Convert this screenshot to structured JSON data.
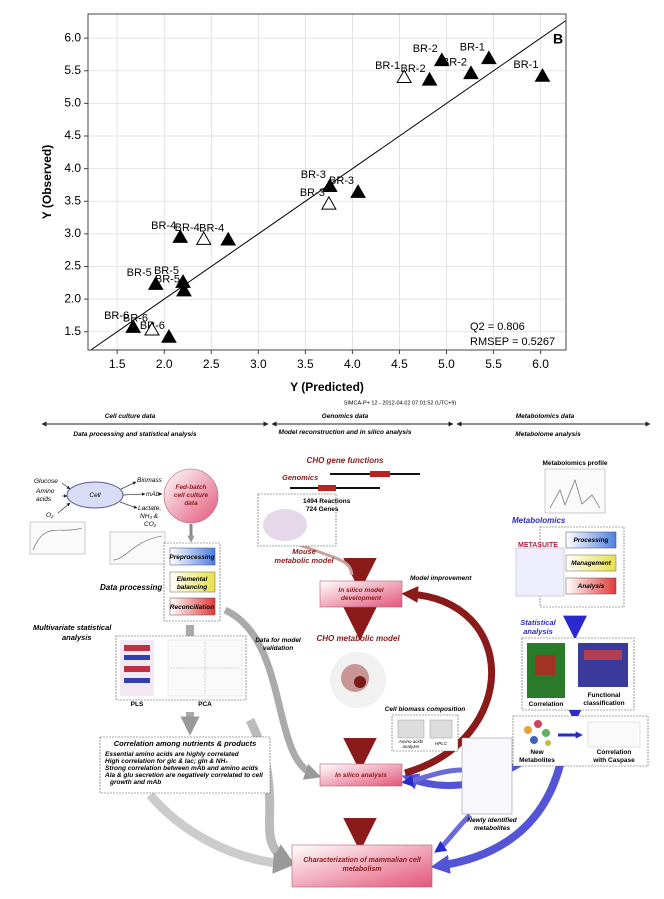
{
  "chart_data": {
    "type": "scatter",
    "panel_label": "B",
    "x_label": "Y (Predicted)",
    "y_label": "Y (Observed)",
    "annotations": [
      "Q2 = 0.806",
      "RMSEP = 0.5267"
    ],
    "footnote": "SIMCA-P+ 12 - 2012-04-02 07:01:52 (UTC+9)",
    "xlim": [
      1.19,
      6.27
    ],
    "ylim": [
      1.22,
      6.37
    ],
    "xticks": [
      1.5,
      {
        "value": 2,
        "label": "2.0"
      },
      2.5,
      {
        "value": 3,
        "label": "3.0"
      },
      3.5,
      {
        "value": 4,
        "label": "4.0"
      },
      4.5,
      {
        "value": 5,
        "label": "5.0"
      },
      5.5,
      {
        "value": 6,
        "label": "6.0"
      }
    ],
    "yticks": [
      1.5,
      {
        "value": 2,
        "label": "2.0"
      },
      2.5,
      {
        "value": 3,
        "label": "3.0"
      },
      3.5,
      {
        "value": 4,
        "label": "4.0"
      },
      4.5,
      {
        "value": 5,
        "label": "5.0"
      },
      5.5,
      {
        "value": 6,
        "label": "6.0"
      }
    ],
    "grid": true,
    "diagonal": true,
    "series": [
      {
        "marker": "filled",
        "color": "#000000",
        "x": [
          5.45,
          6.02,
          4.95,
          5.26,
          4.82,
          3.76,
          4.06,
          2.17,
          2.68,
          1.91,
          2.2,
          2.21,
          1.67,
          2.05
        ],
        "values": [
          5.69,
          5.42,
          5.66,
          5.46,
          5.36,
          3.73,
          3.64,
          2.95,
          2.91,
          2.23,
          2.26,
          2.13,
          1.57,
          1.42
        ],
        "point_labels": [
          "BR-1",
          "BR-1",
          "BR-2",
          "BR-2",
          "BR-2",
          "BR-3",
          "BR-3",
          "BR-4",
          "BR-4",
          "BR-5",
          "BR-5",
          "BR-5",
          "BR-6",
          "BR-6"
        ]
      },
      {
        "marker": "open",
        "color": "#000000",
        "x": [
          4.55,
          3.75,
          2.42,
          1.87
        ],
        "values": [
          5.4,
          3.46,
          2.92,
          1.53
        ],
        "point_labels": [
          "BR-1",
          "BR-3",
          "BR-4",
          "BR-6"
        ]
      }
    ]
  },
  "diagram": {
    "header": {
      "columns": [
        "Cell culture data",
        "Genomics data",
        "Metabolomics data"
      ],
      "subtitles": [
        "Data processing and statistical analysis",
        "Model reconstruction and in silico analysis",
        "Metabolome analysis"
      ]
    },
    "cell_culture": {
      "inputs": [
        "Glucose",
        "Amino",
        "acids",
        "O₂"
      ],
      "cell": "Cell",
      "outputs": [
        "Biomass",
        "mAb",
        "Lactate,",
        "NH₃ &",
        "CO₂"
      ],
      "fed_batch": [
        "Fed-batch",
        "cell culture",
        "data"
      ],
      "data_processing": "Data processing",
      "steps": [
        "Preprocessing",
        "Elemental",
        "balancing",
        "Reconciliation"
      ],
      "multivariate": [
        "Multivariate statistical",
        "analysis"
      ],
      "plots": [
        "PLS",
        "PCA"
      ],
      "correlation_title": "Correlation among nutrients & products",
      "correlation_items": [
        "Essential amino acids are highly correlated",
        "High correlation for glc & lac; gln & NH₃",
        "Strong correlation between mAb and amino acids",
        "Ala & glu secretion are negatively correlated to cell",
        "growth and mAb"
      ]
    },
    "genomics": {
      "gene_functions": "CHO gene functions",
      "genomics": "Genomics",
      "reactions": "1494 Reactions",
      "genes": "724 Genes",
      "mouse_model": [
        "Mouse",
        "metabolic model"
      ],
      "model_development": [
        "In silico model",
        "development"
      ],
      "model_improvement": "Model improvement",
      "validation": [
        "Data for model",
        "validation"
      ],
      "cho_model": "CHO metabolic model",
      "biomass_composition": "Cell biomass composition",
      "instruments": [
        "Amino acids",
        "analyzer",
        "HPLC"
      ],
      "in_silico_analysis": "In silico analysis",
      "characterization": [
        "Characterization of mammalian cell",
        "metabolism"
      ],
      "newly_identified": [
        "Newly identified",
        "metabolites"
      ]
    },
    "metabolomics": {
      "profile": "Metabolomics profile",
      "metabolomics": "Metabolomics",
      "software": "METASUITE",
      "steps": [
        "Processing",
        "Management",
        "Analysis"
      ],
      "statistical": [
        "Statistical",
        "analysis"
      ],
      "plots": [
        "Correlation",
        "Functional",
        "classification"
      ],
      "new_metabolites": [
        "New",
        "Metabolites"
      ],
      "caspase": [
        "Correlation",
        "with Caspase"
      ]
    }
  }
}
